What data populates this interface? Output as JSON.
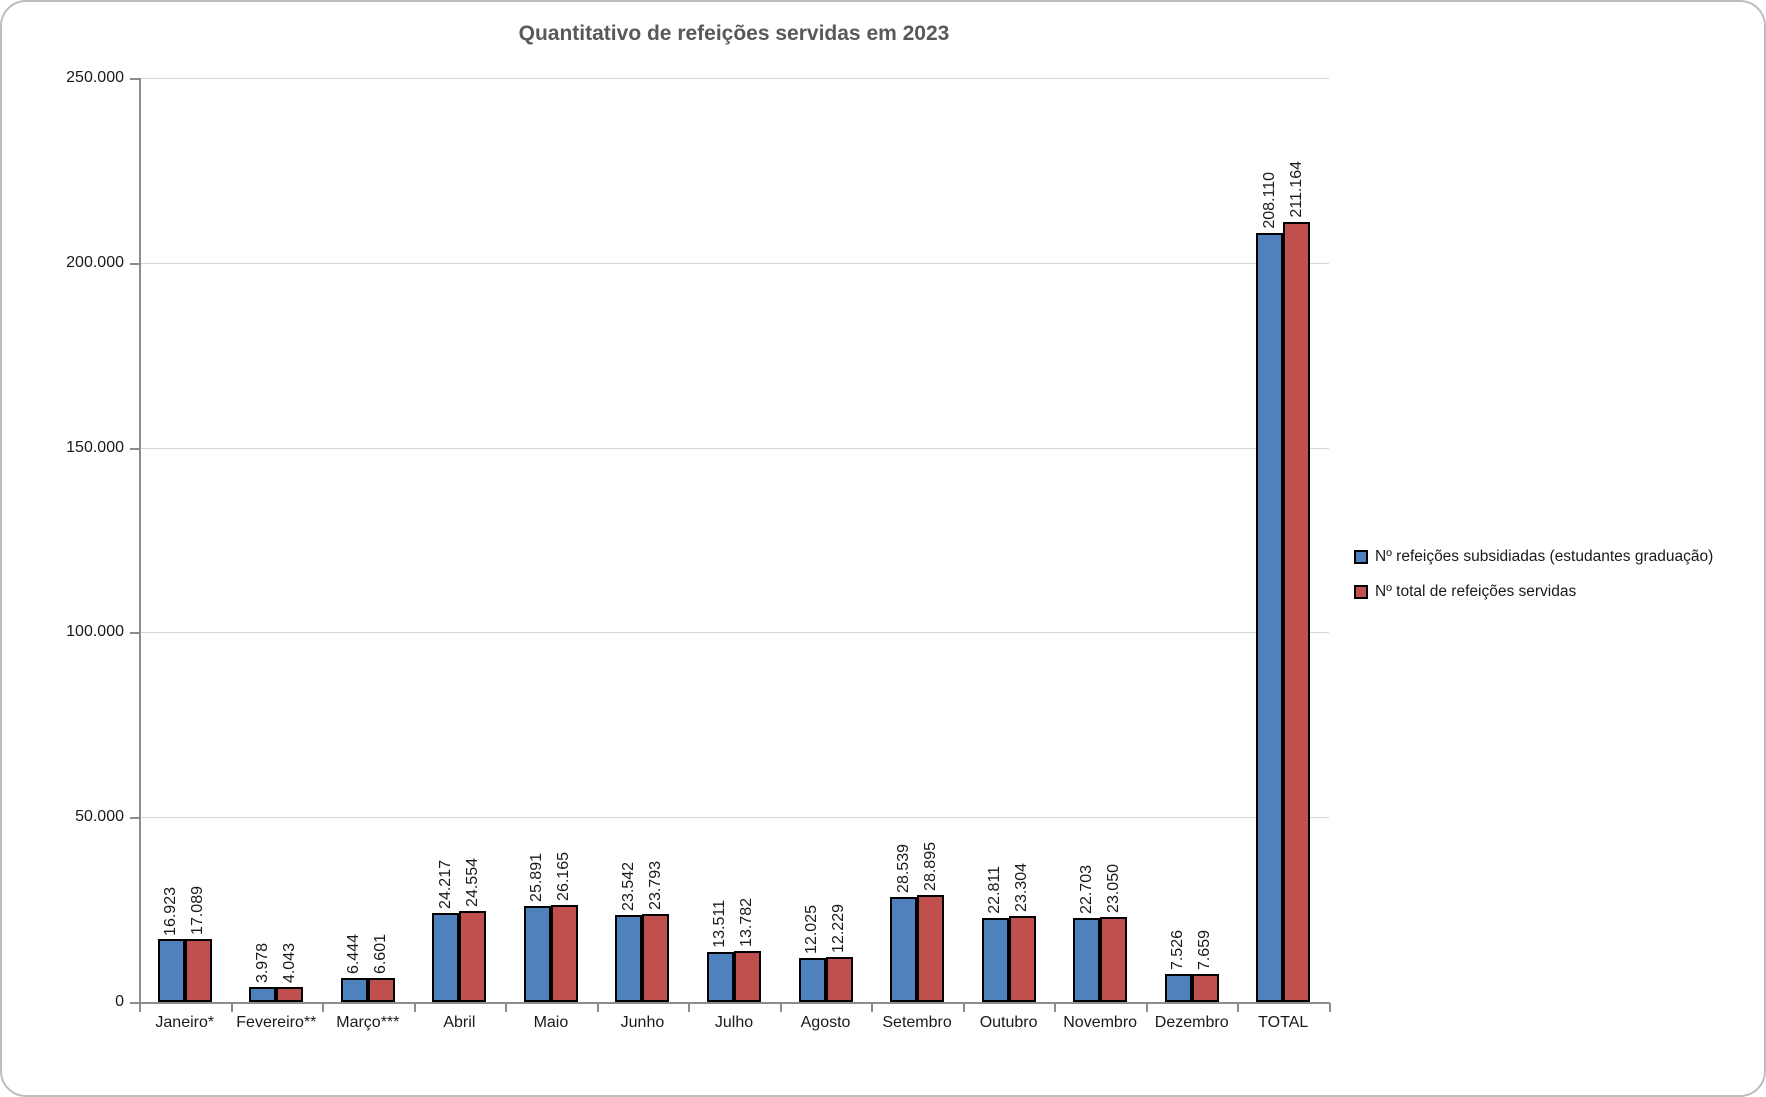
{
  "title": "Quantitativo de refeições servidas em 2023",
  "chart_data": {
    "type": "bar",
    "title": "Quantitativo de refeições servidas em 2023",
    "xlabel": "",
    "ylabel": "",
    "ylim": [
      0,
      250000
    ],
    "grid": true,
    "legend_position": "right-middle",
    "categories": [
      "Janeiro*",
      "Fevereiro**",
      "Março***",
      "Abril",
      "Maio",
      "Junho",
      "Julho",
      "Agosto",
      "Setembro",
      "Outubro",
      "Novembro",
      "Dezembro",
      "TOTAL"
    ],
    "yticks": [
      {
        "value": 0,
        "label": "0"
      },
      {
        "value": 50000,
        "label": "50.000"
      },
      {
        "value": 100000,
        "label": "100.000"
      },
      {
        "value": 150000,
        "label": "150.000"
      },
      {
        "value": 200000,
        "label": "200.000"
      },
      {
        "value": 250000,
        "label": "250.000"
      }
    ],
    "series": [
      {
        "name": "Nº refeições subsidiadas (estudantes graduação)",
        "color": "#4F81BD",
        "values": [
          16923,
          3978,
          6444,
          24217,
          25891,
          23542,
          13511,
          12025,
          28539,
          22811,
          22703,
          7526,
          208110
        ],
        "labels": [
          "16.923",
          "3.978",
          "6.444",
          "24.217",
          "25.891",
          "23.542",
          "13.511",
          "12.025",
          "28.539",
          "22.811",
          "22.703",
          "7.526",
          "208.110"
        ]
      },
      {
        "name": "Nº total de refeições servidas",
        "color": "#C0504D",
        "values": [
          17089,
          4043,
          6601,
          24554,
          26165,
          23793,
          13782,
          12229,
          28895,
          23304,
          23050,
          7659,
          211164
        ],
        "labels": [
          "17.089",
          "4.043",
          "6.601",
          "24.554",
          "26.165",
          "23.793",
          "13.782",
          "12.229",
          "28.895",
          "23.304",
          "23.050",
          "7.659",
          "211.164"
        ]
      }
    ],
    "colors": {
      "title_text": "#595959",
      "axis_line": "#8C8C8C",
      "gridline": "#D6D6D6",
      "bar_border": "#000000",
      "label_text": "#1a1a1a"
    }
  }
}
